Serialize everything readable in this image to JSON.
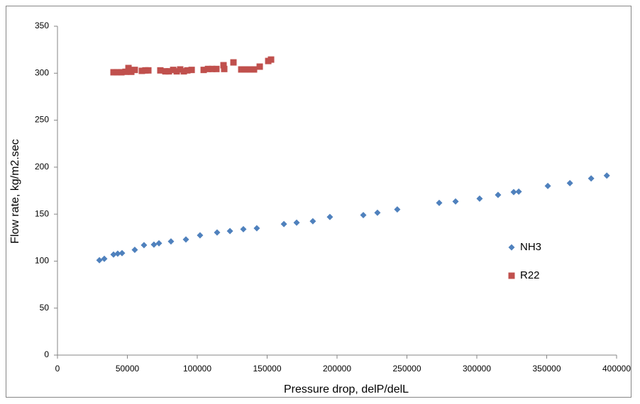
{
  "chart_data": {
    "type": "scatter",
    "x_label": "Pressure drop, delP/delL",
    "y_label": "Flow rate, kg/m2.sec",
    "xlim": [
      0,
      400000
    ],
    "xticks": [
      0,
      50000,
      100000,
      150000,
      200000,
      250000,
      300000,
      350000,
      400000
    ],
    "ylim": [
      0,
      350
    ],
    "yticks": [
      0,
      50,
      100,
      150,
      200,
      250,
      300,
      350
    ],
    "grid": false,
    "legend_position": "right",
    "series": [
      {
        "name": "NH3",
        "color": "#4f81bd",
        "marker": "diamond",
        "x": [
          30000,
          33500,
          40100,
          43100,
          46200,
          55300,
          61900,
          69000,
          72600,
          81200,
          91900,
          102000,
          114200,
          123400,
          133000,
          142600,
          162000,
          171100,
          182700,
          194900,
          218800,
          228900,
          243100,
          273100,
          284800,
          302000,
          315200,
          326400,
          330000,
          350800,
          366600,
          381800,
          393000
        ],
        "values": [
          101,
          102.5,
          107,
          108,
          108.5,
          112,
          117,
          117.6,
          119,
          121,
          123,
          127.5,
          130.5,
          132,
          134,
          135,
          139.5,
          141,
          142.5,
          147,
          149,
          151.5,
          155,
          162,
          163.5,
          166.5,
          170.5,
          173.5,
          174,
          180,
          183,
          188,
          191
        ]
      },
      {
        "name": "R22",
        "color": "#c0504d",
        "marker": "square",
        "x": [
          40100,
          42600,
          45700,
          48700,
          50800,
          52800,
          55300,
          60400,
          62900,
          65000,
          73600,
          77200,
          79700,
          82800,
          85300,
          87800,
          90400,
          92900,
          96000,
          104600,
          107700,
          110700,
          113700,
          118800,
          119300,
          125900,
          131500,
          134500,
          137600,
          140600,
          144700,
          150800,
          152800
        ],
        "values": [
          301,
          301,
          301,
          301.5,
          305.5,
          301.5,
          303.5,
          302.5,
          303,
          303,
          303,
          302,
          302,
          303.5,
          302,
          304,
          302,
          303,
          303.5,
          303.5,
          304.5,
          304.5,
          304.5,
          308.5,
          304.5,
          311.5,
          304,
          304,
          304,
          304,
          307,
          313,
          314.5
        ]
      }
    ]
  }
}
